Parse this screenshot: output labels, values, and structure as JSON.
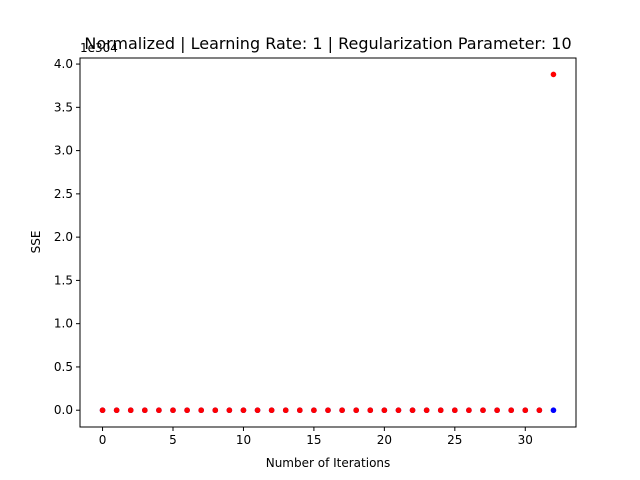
{
  "chart_data": {
    "type": "scatter",
    "title": "Normalized | Learning Rate: 1 | Regularization Parameter: 10",
    "xlabel": "Number of Iterations",
    "ylabel": "SSE",
    "offset_text": "1e304",
    "xlim": [
      -1.6,
      33.6
    ],
    "ylim": [
      -0.194,
      4.07
    ],
    "xticks": [
      0,
      5,
      10,
      15,
      20,
      25,
      30
    ],
    "yticks": [
      0.0,
      0.5,
      1.0,
      1.5,
      2.0,
      2.5,
      3.0,
      3.5,
      4.0
    ],
    "ytick_labels": [
      "0.0",
      "0.5",
      "1.0",
      "1.5",
      "2.0",
      "2.5",
      "3.0",
      "3.5",
      "4.0"
    ],
    "grid": false,
    "series": [
      {
        "color": "#0000ff",
        "x": [
          0,
          1,
          2,
          3,
          4,
          5,
          6,
          7,
          8,
          9,
          10,
          11,
          12,
          13,
          14,
          15,
          16,
          17,
          18,
          19,
          20,
          21,
          22,
          23,
          24,
          25,
          26,
          27,
          28,
          29,
          30,
          31,
          32
        ],
        "y": [
          0,
          0,
          0,
          0,
          0,
          0,
          0,
          0,
          0,
          0,
          0,
          0,
          0,
          0,
          0,
          0,
          0,
          0,
          0,
          0,
          0,
          0,
          0,
          0,
          0,
          0,
          0,
          0,
          0,
          0,
          0,
          0,
          0
        ]
      },
      {
        "color": "#ff0000",
        "x": [
          0,
          1,
          2,
          3,
          4,
          5,
          6,
          7,
          8,
          9,
          10,
          11,
          12,
          13,
          14,
          15,
          16,
          17,
          18,
          19,
          20,
          21,
          22,
          23,
          24,
          25,
          26,
          27,
          28,
          29,
          30,
          31,
          32
        ],
        "y": [
          0,
          0,
          0,
          0,
          0,
          0,
          0,
          0,
          0,
          0,
          0,
          0,
          0,
          0,
          0,
          0,
          0,
          0,
          0,
          0,
          0,
          0,
          0,
          0,
          0,
          0,
          0,
          0,
          0,
          0,
          0,
          0,
          3.88
        ]
      }
    ]
  }
}
